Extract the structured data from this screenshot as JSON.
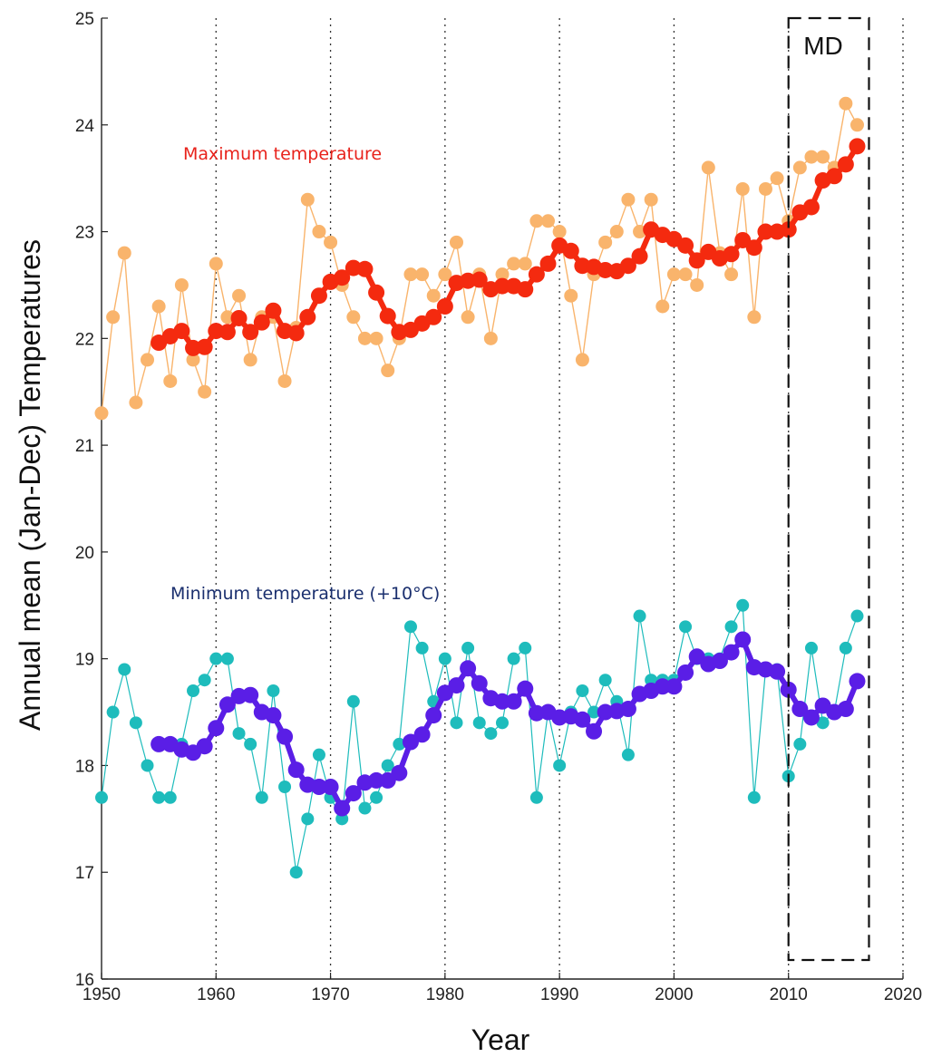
{
  "chart_data": {
    "type": "line",
    "xlabel": "Year",
    "ylabel": "Annual mean (Jan-Dec) Temperatures",
    "xlim": [
      1950,
      2020
    ],
    "ylim": [
      16,
      25
    ],
    "xticks": [
      1950,
      1960,
      1970,
      1980,
      1990,
      2000,
      2010,
      2020
    ],
    "yticks": [
      16,
      17,
      18,
      19,
      20,
      21,
      22,
      23,
      24,
      25
    ],
    "xtick_labels": [
      "1950",
      "1960",
      "1970",
      "1980",
      "1990",
      "2000",
      "2010",
      "2020"
    ],
    "ytick_labels": [
      "16",
      "17",
      "18",
      "19",
      "20",
      "21",
      "22",
      "23",
      "24",
      "25"
    ],
    "grid": "vertical dotted at x ticks",
    "annotations": {
      "max_label": "Maximum temperature",
      "min_label": "Minimum temperature (+10°C)",
      "md_label": "MD",
      "md_range": [
        2010,
        2016
      ]
    },
    "colors": {
      "max_annual": "#f9b46c",
      "max_smooth": "#f42a0f",
      "max_text": "#e8221b",
      "min_annual": "#1ebcbc",
      "min_smooth": "#5a1ee6",
      "min_text": "#1a2f6e"
    },
    "series": [
      {
        "key": "max_annual",
        "x": [
          1950,
          1951,
          1952,
          1953,
          1954,
          1955,
          1956,
          1957,
          1958,
          1959,
          1960,
          1961,
          1962,
          1963,
          1964,
          1965,
          1966,
          1967,
          1968,
          1969,
          1970,
          1971,
          1972,
          1973,
          1974,
          1975,
          1976,
          1977,
          1978,
          1979,
          1980,
          1981,
          1982,
          1983,
          1984,
          1985,
          1986,
          1987,
          1988,
          1989,
          1990,
          1991,
          1992,
          1993,
          1994,
          1995,
          1996,
          1997,
          1998,
          1999,
          2000,
          2001,
          2002,
          2003,
          2004,
          2005,
          2006,
          2007,
          2008,
          2009,
          2010,
          2011,
          2012,
          2013,
          2014,
          2015,
          2016
        ],
        "values": [
          21.3,
          22.2,
          22.8,
          21.4,
          21.8,
          22.3,
          21.6,
          22.5,
          21.8,
          21.5,
          22.7,
          22.2,
          22.4,
          21.8,
          22.2,
          22.2,
          21.6,
          22.1,
          23.3,
          23.0,
          22.9,
          22.5,
          22.2,
          22.0,
          22.0,
          21.7,
          22.0,
          22.6,
          22.6,
          22.4,
          22.6,
          22.9,
          22.2,
          22.6,
          22.0,
          22.6,
          22.7,
          22.7,
          23.1,
          23.1,
          23.0,
          22.4,
          21.8,
          22.6,
          22.9,
          23.0,
          23.3,
          23.0,
          23.3,
          22.3,
          22.6,
          22.6,
          22.5,
          23.6,
          22.8,
          22.6,
          23.4,
          22.2,
          23.4,
          23.5,
          23.1,
          23.6,
          23.7,
          23.7,
          23.6,
          24.2,
          24.0
        ]
      },
      {
        "key": "max_smooth",
        "x": [
          1955,
          1956,
          1957,
          1958,
          1959,
          1960,
          1961,
          1962,
          1963,
          1964,
          1965,
          1966,
          1967,
          1968,
          1969,
          1970,
          1971,
          1972,
          1973,
          1974,
          1975,
          1976,
          1977,
          1978,
          1979,
          1980,
          1981,
          1982,
          1983,
          1984,
          1985,
          1986,
          1987,
          1988,
          1989,
          1990,
          1991,
          1992,
          1993,
          1994,
          1995,
          1996,
          1997,
          1998,
          1999,
          2000,
          2001,
          2002,
          2003,
          2004,
          2005,
          2006,
          2007,
          2008,
          2009,
          2010,
          2011,
          2012,
          2013,
          2014,
          2015,
          2016
        ],
        "values": [
          21.96,
          22.02,
          22.07,
          21.91,
          21.92,
          22.07,
          22.06,
          22.19,
          22.06,
          22.15,
          22.26,
          22.07,
          22.05,
          22.2,
          22.4,
          22.53,
          22.57,
          22.66,
          22.65,
          22.43,
          22.21,
          22.06,
          22.08,
          22.14,
          22.2,
          22.3,
          22.52,
          22.54,
          22.55,
          22.46,
          22.49,
          22.49,
          22.46,
          22.6,
          22.7,
          22.87,
          22.82,
          22.68,
          22.67,
          22.64,
          22.63,
          22.68,
          22.77,
          23.02,
          22.97,
          22.93,
          22.87,
          22.73,
          22.81,
          22.75,
          22.79,
          22.92,
          22.85,
          23.0,
          23.0,
          23.02,
          23.18,
          23.23,
          23.48,
          23.52,
          23.63,
          23.8
        ]
      },
      {
        "key": "min_annual",
        "x": [
          1950,
          1951,
          1952,
          1953,
          1954,
          1955,
          1956,
          1957,
          1958,
          1959,
          1960,
          1961,
          1962,
          1963,
          1964,
          1965,
          1966,
          1967,
          1968,
          1969,
          1970,
          1971,
          1972,
          1973,
          1974,
          1975,
          1976,
          1977,
          1978,
          1979,
          1980,
          1981,
          1982,
          1983,
          1984,
          1985,
          1986,
          1987,
          1988,
          1989,
          1990,
          1991,
          1992,
          1993,
          1994,
          1995,
          1996,
          1997,
          1998,
          1999,
          2000,
          2001,
          2002,
          2003,
          2004,
          2005,
          2006,
          2007,
          2008,
          2009,
          2010,
          2011,
          2012,
          2013,
          2014,
          2015,
          2016
        ],
        "values": [
          17.7,
          18.5,
          18.9,
          18.4,
          18.0,
          17.7,
          17.7,
          18.2,
          18.7,
          18.8,
          19.0,
          19.0,
          18.3,
          18.2,
          17.7,
          18.7,
          17.8,
          17.0,
          17.5,
          18.1,
          17.7,
          17.5,
          18.6,
          17.6,
          17.7,
          18.0,
          18.2,
          19.3,
          19.1,
          18.6,
          19.0,
          18.4,
          19.1,
          18.4,
          18.3,
          18.4,
          19.0,
          19.1,
          17.7,
          18.5,
          18.0,
          18.5,
          18.7,
          18.5,
          18.8,
          18.6,
          18.1,
          19.4,
          18.8,
          18.8,
          18.8,
          19.3,
          19.0,
          19.0,
          19.0,
          19.3,
          19.5,
          17.7,
          18.9,
          18.9,
          17.9,
          18.2,
          19.1,
          18.4,
          18.5,
          19.1,
          19.4
        ]
      },
      {
        "key": "min_smooth",
        "x": [
          1955,
          1956,
          1957,
          1958,
          1959,
          1960,
          1961,
          1962,
          1963,
          1964,
          1965,
          1966,
          1967,
          1968,
          1969,
          1970,
          1971,
          1972,
          1973,
          1974,
          1975,
          1976,
          1977,
          1978,
          1979,
          1980,
          1981,
          1982,
          1983,
          1984,
          1985,
          1986,
          1987,
          1988,
          1989,
          1990,
          1991,
          1992,
          1993,
          1994,
          1995,
          1996,
          1997,
          1998,
          1999,
          2000,
          2001,
          2002,
          2003,
          2004,
          2005,
          2006,
          2007,
          2008,
          2009,
          2010,
          2011,
          2012,
          2013,
          2014,
          2015,
          2016
        ],
        "values": [
          18.2,
          18.2,
          18.15,
          18.12,
          18.18,
          18.35,
          18.57,
          18.65,
          18.66,
          18.5,
          18.47,
          18.27,
          17.96,
          17.82,
          17.8,
          17.8,
          17.6,
          17.74,
          17.84,
          17.86,
          17.86,
          17.93,
          18.22,
          18.29,
          18.47,
          18.68,
          18.75,
          18.91,
          18.77,
          18.63,
          18.6,
          18.6,
          18.72,
          18.49,
          18.5,
          18.45,
          18.46,
          18.43,
          18.32,
          18.5,
          18.51,
          18.53,
          18.67,
          18.7,
          18.74,
          18.74,
          18.87,
          19.02,
          18.95,
          18.98,
          19.06,
          19.18,
          18.92,
          18.9,
          18.88,
          18.71,
          18.53,
          18.45,
          18.56,
          18.5,
          18.53,
          18.79
        ]
      }
    ]
  }
}
